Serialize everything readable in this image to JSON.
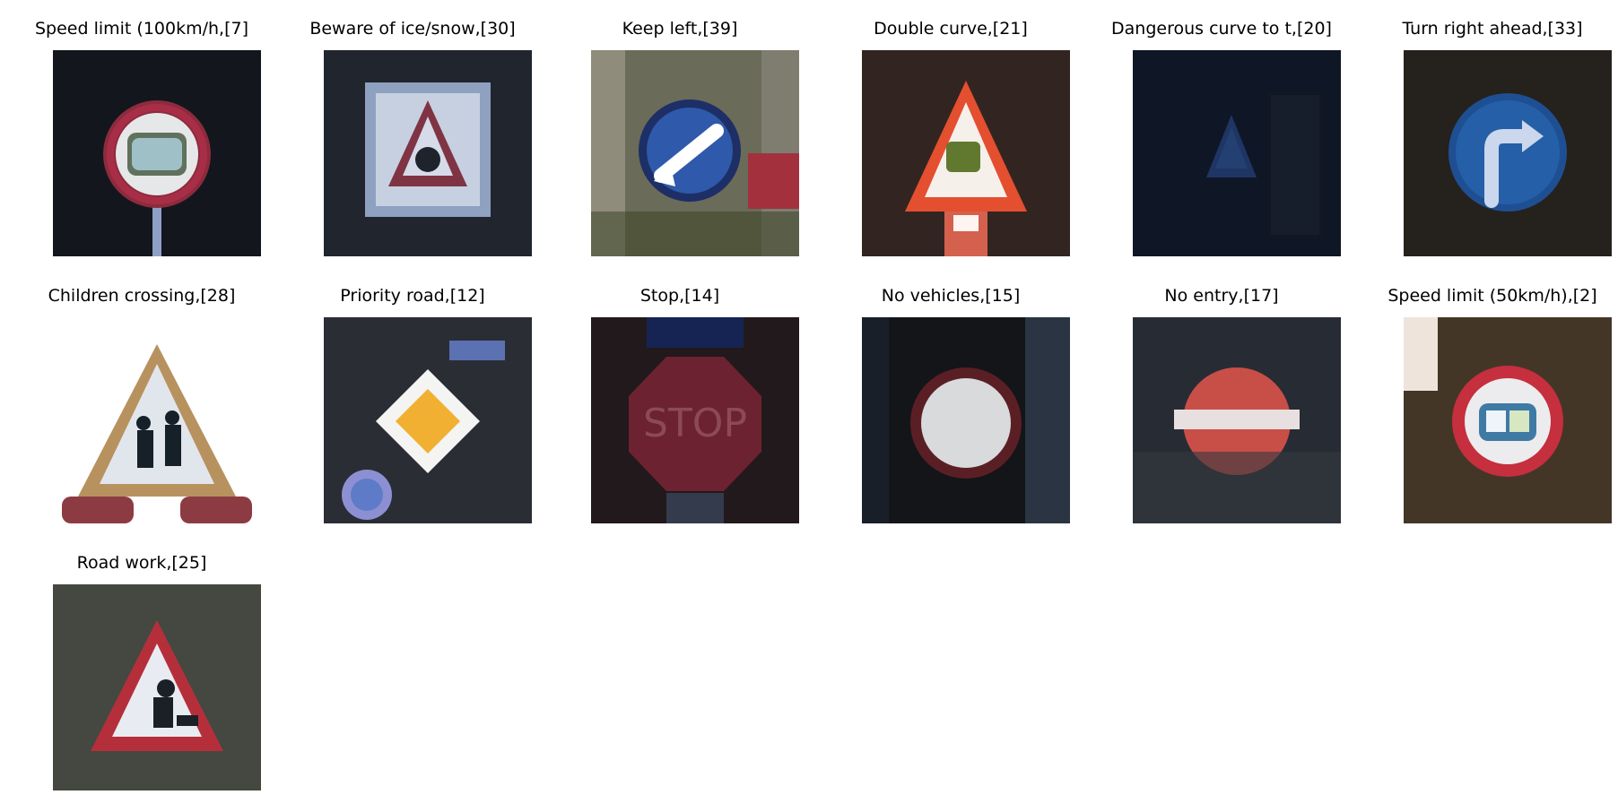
{
  "figure": {
    "panels": [
      {
        "title": "Speed limit (100km/h,[7]",
        "icon": "speed-limit-100-sign"
      },
      {
        "title": "Beware of ice/snow,[30]",
        "icon": "beware-ice-snow-sign"
      },
      {
        "title": "Keep left,[39]",
        "icon": "keep-left-sign"
      },
      {
        "title": "Double curve,[21]",
        "icon": "double-curve-sign"
      },
      {
        "title": "Dangerous curve to t,[20]",
        "icon": "dangerous-curve-sign"
      },
      {
        "title": "Turn right ahead,[33]",
        "icon": "turn-right-ahead-sign"
      },
      {
        "title": "Children crossing,[28]",
        "icon": "children-crossing-sign"
      },
      {
        "title": "Priority road,[12]",
        "icon": "priority-road-sign"
      },
      {
        "title": "Stop,[14]",
        "icon": "stop-sign"
      },
      {
        "title": "No vehicles,[15]",
        "icon": "no-vehicles-sign"
      },
      {
        "title": "No entry,[17]",
        "icon": "no-entry-sign"
      },
      {
        "title": "Speed limit (50km/h),[2]",
        "icon": "speed-limit-50-sign"
      },
      {
        "title": "Road work,[25]",
        "icon": "road-work-sign"
      }
    ]
  }
}
